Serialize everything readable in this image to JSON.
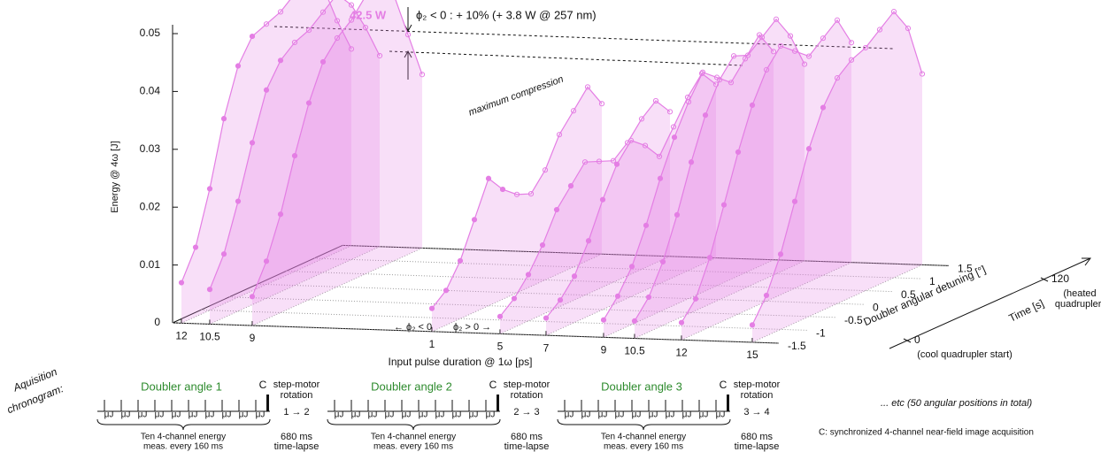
{
  "chart_data": {
    "type": "waterfall3d",
    "ylabel": "Energy @ 4ω [J]",
    "xlabel": "Input pulse duration @ 1ω [ps]",
    "zlabel": "Doubler angular detuning [°]",
    "tlabel": "Time [s]",
    "ylim": [
      0,
      0.05
    ],
    "yticks": [
      0,
      0.01,
      0.02,
      0.03,
      0.04,
      0.05
    ],
    "categories": [
      "12",
      "10.5",
      "9",
      "1",
      "5",
      "7",
      "9",
      "10.5",
      "12",
      "15"
    ],
    "xlim": [
      -1.5,
      1.5
    ],
    "xticks": [
      -1.5,
      -1,
      -0.5,
      0,
      0.5,
      1,
      1.5
    ],
    "x": [
      -1.5,
      -1.25,
      -1,
      -0.75,
      -0.5,
      -0.25,
      0,
      0.25,
      0.5,
      0.75,
      1,
      1.25,
      1.5
    ],
    "tticks": [
      0,
      120
    ],
    "tick_notes": [
      [
        "(cool quadrupler start)"
      ],
      [
        "(heated",
        "quadrupler)"
      ]
    ],
    "color": "#e47ee4",
    "series": [
      {
        "values": [
          0.007,
          0.012,
          0.021,
          0.032,
          0.04,
          0.044,
          0.045,
          0.046,
          0.048,
          0.049,
          0.047,
          0.04,
          0.034
        ]
      },
      {
        "values": [
          0.006,
          0.011,
          0.019,
          0.028,
          0.036,
          0.04,
          0.042,
          0.043,
          0.045,
          0.047,
          0.044,
          0.039,
          0.033
        ]
      },
      {
        "values": [
          0.005,
          0.01,
          0.017,
          0.026,
          0.034,
          0.04,
          0.043,
          0.045,
          0.048,
          0.05,
          0.046,
          0.038,
          0.03
        ]
      },
      {
        "values": [
          0.004,
          0.006,
          0.01,
          0.016,
          0.022,
          0.019,
          0.017,
          0.016,
          0.019,
          0.024,
          0.027,
          0.03,
          0.026
        ]
      },
      {
        "values": [
          0.003,
          0.005,
          0.008,
          0.012,
          0.017,
          0.02,
          0.023,
          0.022,
          0.021,
          0.023,
          0.026,
          0.028,
          0.025
        ]
      },
      {
        "values": [
          0.003,
          0.005,
          0.008,
          0.013,
          0.019,
          0.024,
          0.027,
          0.025,
          0.022,
          0.026,
          0.03,
          0.033,
          0.03
        ]
      },
      {
        "values": [
          0.003,
          0.006,
          0.01,
          0.016,
          0.023,
          0.029,
          0.034,
          0.038,
          0.036,
          0.034,
          0.037,
          0.04,
          0.036
        ]
      },
      {
        "values": [
          0.003,
          0.006,
          0.011,
          0.018,
          0.026,
          0.033,
          0.038,
          0.041,
          0.04,
          0.042,
          0.044,
          0.04,
          0.034
        ]
      },
      {
        "values": [
          0.003,
          0.006,
          0.012,
          0.02,
          0.028,
          0.035,
          0.04,
          0.043,
          0.041,
          0.039,
          0.041,
          0.043,
          0.038
        ]
      },
      {
        "values": [
          0.003,
          0.007,
          0.013,
          0.021,
          0.029,
          0.035,
          0.039,
          0.041,
          0.042,
          0.044,
          0.046,
          0.042,
          0.033
        ]
      }
    ],
    "annotations": {
      "peak": "42.5 W",
      "gain": "ϕ₂ < 0 : + 10% (+ 3.8 W @ 257 nm)",
      "compression": "maximum compression",
      "neg": "← ϕ₂ < 0",
      "pos": "ϕ₂ > 0 →"
    }
  },
  "chronogram": {
    "label": [
      "Aquisition",
      "chronogram:"
    ],
    "groups": [
      {
        "title": "Doubler angle 1",
        "transition": "1 → 2"
      },
      {
        "title": "Doubler angle 2",
        "transition": "2 → 3"
      },
      {
        "title": "Doubler angle 3",
        "transition": "3 → 4"
      }
    ],
    "unit": "μJ",
    "c": "C",
    "motor": [
      "step-motor",
      "rotation"
    ],
    "meas": [
      "Ten 4-channel energy",
      "meas. every 160 ms"
    ],
    "lapse": [
      "680 ms",
      "time-lapse"
    ],
    "etc": "... etc (50 angular positions in total)",
    "c_note": "C: synchronized 4-channel near-field image acquisition"
  }
}
